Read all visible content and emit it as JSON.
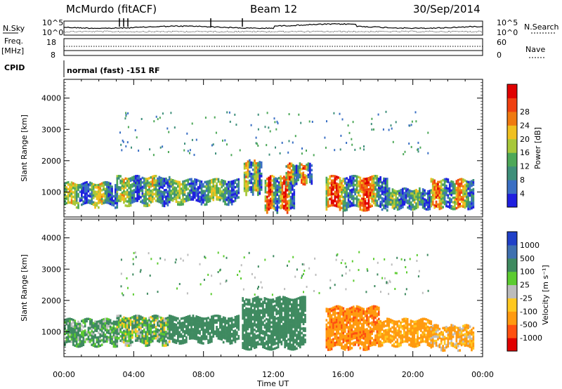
{
  "header": {
    "station": "McMurdo (fitACF)",
    "beam": "Beam 12",
    "date": "30/Sep/2014"
  },
  "top_strip": {
    "nsky_label": "N.Sky",
    "nsearch_label": "N.Search",
    "freq_label_line1": "Freq.",
    "freq_label_line2": "[MHz]",
    "nave_label": "Nave",
    "cpid_label": "CPID",
    "cpid_value": "normal (fast) -151 RF",
    "noise_left_ticks": [
      "10^5",
      "10^0"
    ],
    "noise_right_ticks": [
      "10^5",
      "10^0"
    ],
    "freq_ticks": [
      "18",
      "8"
    ],
    "nave_ticks": [
      "60",
      "0"
    ]
  },
  "chart_data": [
    {
      "type": "heatmap",
      "name": "power-panel",
      "ylabel": "Slant Range [km]",
      "xlabel": "Time UT",
      "x_ticks": [
        "00:00",
        "04:00",
        "08:00",
        "12:00",
        "16:00",
        "20:00",
        "00:00"
      ],
      "x_range_hours": [
        0,
        24
      ],
      "y_ticks": [
        1000,
        2000,
        3000,
        4000
      ],
      "y_range_km": [
        200,
        4600
      ],
      "colorbar": {
        "label": "Power [dB]",
        "ticks": [
          4,
          8,
          12,
          16,
          20,
          24,
          28
        ],
        "colors": [
          "#1f1fe0",
          "#3a6fc4",
          "#3e8f7a",
          "#4da858",
          "#a8c83a",
          "#f0c020",
          "#f07a10",
          "#f04010",
          "#e00000"
        ],
        "range": [
          0,
          30
        ]
      },
      "bands": [
        {
          "start": 0.0,
          "end": 3.0,
          "low": 600,
          "high": 1300,
          "level": 0.55
        },
        {
          "start": 3.0,
          "end": 6.0,
          "low": 650,
          "high": 1500,
          "level": 0.5
        },
        {
          "start": 6.0,
          "end": 10.0,
          "low": 700,
          "high": 1400,
          "level": 0.45
        },
        {
          "start": 10.3,
          "end": 11.3,
          "low": 1000,
          "high": 2000,
          "level": 0.6
        },
        {
          "start": 11.5,
          "end": 13.2,
          "low": 450,
          "high": 1500,
          "level": 0.9
        },
        {
          "start": 12.7,
          "end": 14.2,
          "low": 1300,
          "high": 1900,
          "level": 0.75
        },
        {
          "start": 15.0,
          "end": 18.5,
          "low": 500,
          "high": 1500,
          "level": 0.85
        },
        {
          "start": 18.5,
          "end": 21.0,
          "low": 500,
          "high": 1100,
          "level": 0.4
        },
        {
          "start": 21.0,
          "end": 23.5,
          "low": 500,
          "high": 1400,
          "level": 0.75
        }
      ]
    },
    {
      "type": "heatmap",
      "name": "velocity-panel",
      "ylabel": "Slant Range [km]",
      "xlabel": "Time UT",
      "x_ticks": [
        "00:00",
        "04:00",
        "08:00",
        "12:00",
        "16:00",
        "20:00",
        "00:00"
      ],
      "x_range_hours": [
        0,
        24
      ],
      "y_ticks": [
        1000,
        2000,
        3000,
        4000
      ],
      "y_range_km": [
        200,
        4600
      ],
      "colorbar": {
        "label": "Velocity [m s⁻¹]",
        "ticks": [
          "-1000",
          "-500",
          "-100",
          "-25",
          "25",
          "100",
          "500",
          "1000"
        ],
        "colors": [
          "#e00000",
          "#ff5010",
          "#ff9a10",
          "#ffc820",
          "#bcbcbc",
          "#5ccc30",
          "#3f8a60",
          "#3f70b0",
          "#2040c8"
        ],
        "range": [
          -1200,
          1200
        ]
      },
      "bands": [
        {
          "start": 0.0,
          "end": 3.0,
          "low": 600,
          "high": 1400,
          "velocity": 150
        },
        {
          "start": 3.0,
          "end": 6.0,
          "low": 650,
          "high": 1500,
          "velocity": 80
        },
        {
          "start": 6.0,
          "end": 10.0,
          "low": 700,
          "high": 1500,
          "velocity": 300
        },
        {
          "start": 10.2,
          "end": 13.8,
          "low": 500,
          "high": 2100,
          "velocity": 300
        },
        {
          "start": 15.0,
          "end": 18.0,
          "low": 500,
          "high": 1800,
          "velocity": -400
        },
        {
          "start": 18.0,
          "end": 21.0,
          "low": 600,
          "high": 1400,
          "velocity": -200
        },
        {
          "start": 21.0,
          "end": 23.5,
          "low": 500,
          "high": 1200,
          "velocity": -150
        }
      ]
    }
  ]
}
